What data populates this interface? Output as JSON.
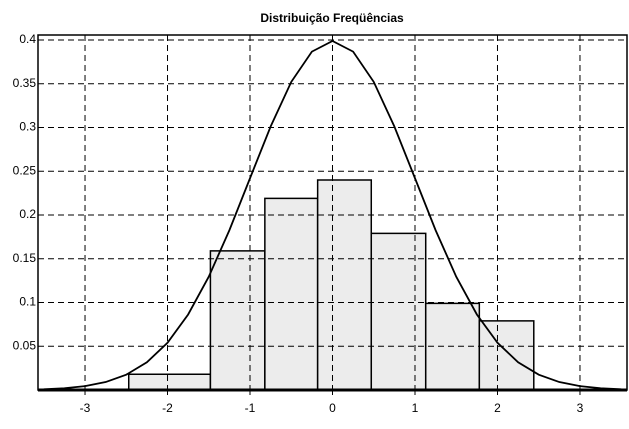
{
  "chart_data": [
    {
      "type": "histogram",
      "title": "Distribuição Freqüências",
      "bins": [
        -2.47,
        -1.48,
        -0.82,
        -0.18,
        0.47,
        1.13,
        1.78,
        2.44
      ],
      "values": [
        0.018,
        0.159,
        0.219,
        0.24,
        0.179,
        0.099,
        0.079
      ],
      "color": "#ececec",
      "xlim": [
        -3.57,
        3.57
      ],
      "ylim": [
        0,
        0.4
      ],
      "xticks": [
        -3,
        -2,
        -1,
        0,
        1,
        2,
        3
      ],
      "yticks": [
        0.05,
        0.1,
        0.15,
        0.2,
        0.25,
        0.3,
        0.35,
        0.4
      ],
      "grid": true
    },
    {
      "type": "line",
      "color": "#000000",
      "x": [
        -3.5,
        -3.25,
        -3,
        -2.75,
        -2.5,
        -2.25,
        -2,
        -1.75,
        -1.5,
        -1.25,
        -1,
        -0.75,
        -0.5,
        -0.25,
        0,
        0.25,
        0.5,
        0.75,
        1,
        1.25,
        1.5,
        1.75,
        2,
        2.25,
        2.5,
        2.75,
        3,
        3.25,
        3.5
      ],
      "values": [
        0.0009,
        0.002,
        0.0044,
        0.0091,
        0.0175,
        0.0317,
        0.054,
        0.0863,
        0.1295,
        0.1826,
        0.242,
        0.3011,
        0.3521,
        0.3867,
        0.3989,
        0.3867,
        0.3521,
        0.3011,
        0.242,
        0.1826,
        0.1295,
        0.0863,
        0.054,
        0.0317,
        0.0175,
        0.0091,
        0.0044,
        0.002,
        0.0009
      ]
    }
  ]
}
